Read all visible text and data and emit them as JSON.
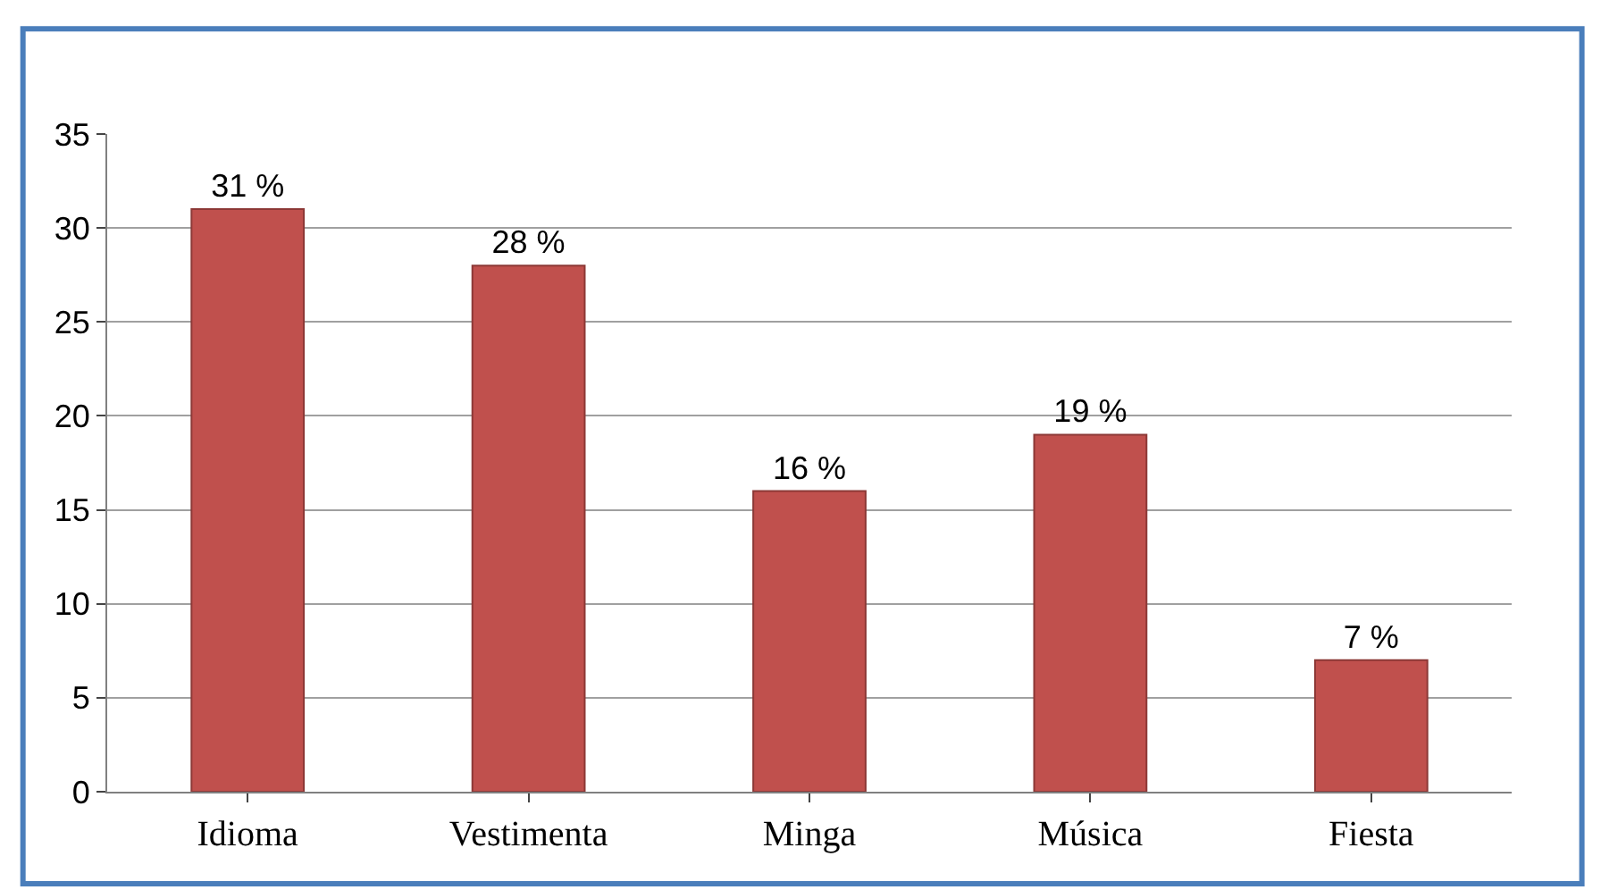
{
  "chart_data": {
    "type": "bar",
    "categories": [
      "Idioma",
      "Vestimenta",
      "Minga",
      "Música",
      "Fiesta"
    ],
    "values": [
      31,
      28,
      16,
      19,
      7
    ],
    "value_labels": [
      "31 %",
      "28 %",
      "16 %",
      "19 %",
      "7 %"
    ],
    "color": "#c0504d",
    "ylim": [
      0,
      35
    ],
    "yticks": [
      0,
      5,
      10,
      15,
      20,
      25,
      30,
      35
    ],
    "grid": "y",
    "legend": false
  }
}
